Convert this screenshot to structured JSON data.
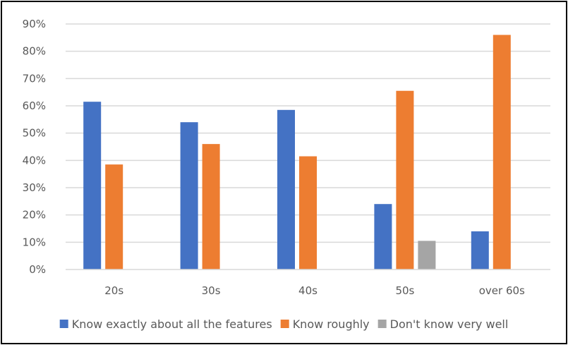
{
  "chart_data": {
    "type": "bar",
    "title": "",
    "xlabel": "",
    "ylabel": "",
    "categories": [
      "20s",
      "30s",
      "40s",
      "50s",
      "over 60s"
    ],
    "series": [
      {
        "name": "Know exactly about all the features",
        "color": "#4472C4",
        "values": [
          61.5,
          54.0,
          58.5,
          24.0,
          14.0
        ]
      },
      {
        "name": "Know roughly",
        "color": "#ED7D31",
        "values": [
          38.5,
          46.0,
          41.5,
          65.5,
          86.0
        ]
      },
      {
        "name": "Don't know very well",
        "color": "#A5A5A5",
        "values": [
          0,
          0,
          0,
          10.5,
          0
        ]
      }
    ],
    "ylim": [
      0,
      90
    ],
    "yticks": [
      "0%",
      "10%",
      "20%",
      "30%",
      "40%",
      "50%",
      "60%",
      "70%",
      "80%",
      "90%"
    ],
    "ytick_values": [
      0,
      10,
      20,
      30,
      40,
      50,
      60,
      70,
      80,
      90
    ],
    "grid": true,
    "legend_position": "bottom"
  }
}
